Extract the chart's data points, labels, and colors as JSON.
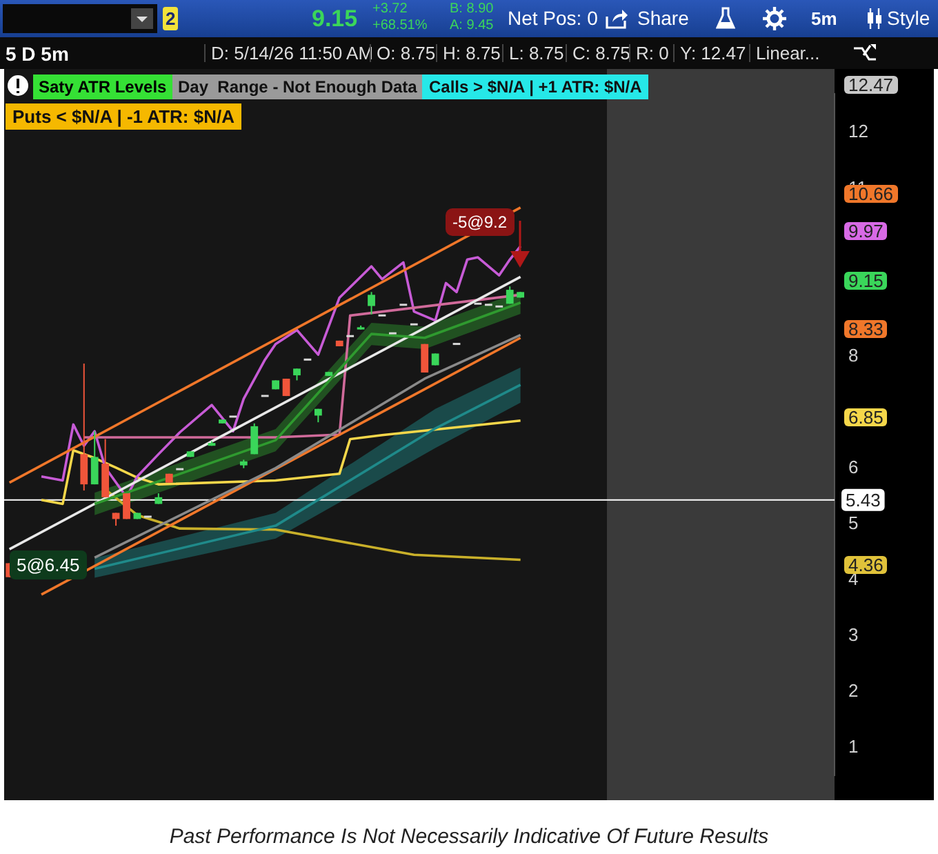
{
  "chart_data": {
    "type": "candlestick",
    "categories": [
      null,
      null,
      null,
      null,
      null,
      null,
      null,
      null,
      null,
      null,
      null,
      null,
      null,
      null,
      null,
      null,
      null,
      null,
      null,
      null,
      null,
      null,
      null,
      null,
      null,
      null,
      null,
      null,
      null,
      null,
      null,
      null,
      null,
      null,
      null,
      null,
      null,
      null,
      null,
      null,
      null,
      null,
      null,
      null,
      null,
      null,
      null,
      null,
      null,
      null,
      null,
      null,
      null,
      null,
      null,
      null,
      null,
      null,
      null,
      null,
      null,
      null,
      null,
      null,
      null,
      null,
      null,
      null,
      null,
      null,
      null,
      null,
      null,
      null,
      null,
      null,
      null,
      null
    ],
    "ohlc": [
      [
        4.3,
        4.3,
        4.05,
        4.05
      ],
      null,
      null,
      null,
      null,
      null,
      null,
      [
        6.25,
        7.87,
        5.6,
        5.71
      ],
      [
        5.71,
        6.66,
        5.71,
        6.2
      ],
      [
        6.08,
        6.52,
        5.48,
        5.48
      ],
      [
        5.2,
        5.2,
        4.97,
        5.09
      ],
      [
        5.55,
        5.55,
        5.09,
        5.09
      ],
      [
        5.09,
        5.2,
        5.09,
        5.2
      ],
      [
        5.15,
        5.15,
        5.15,
        5.15
      ],
      [
        5.36,
        5.55,
        5.36,
        5.48
      ],
      [
        5.9,
        5.9,
        5.74,
        5.74
      ],
      [
        6,
        6,
        6,
        6
      ],
      [
        6.2,
        6.3,
        6.2,
        6.3
      ],
      null,
      [
        6.4,
        6.48,
        6.4,
        6.45
      ],
      [
        6.8,
        6.87,
        6.8,
        6.87
      ],
      [
        6.94,
        6.94,
        6.94,
        6.94
      ],
      [
        6.05,
        6.15,
        6,
        6.12
      ],
      [
        6.25,
        6.8,
        6.25,
        6.75
      ],
      [
        7.31,
        7.31,
        7.31,
        7.31
      ],
      [
        7.41,
        7.57,
        7.41,
        7.57
      ],
      [
        7.6,
        7.6,
        7.29,
        7.29
      ],
      [
        7.66,
        7.78,
        7.57,
        7.78
      ],
      [
        7.96,
        7.96,
        7.96,
        7.96
      ],
      [
        6.94,
        7.06,
        6.82,
        7.06
      ],
      [
        7.65,
        7.72,
        7.65,
        7.72
      ],
      [
        8.28,
        8.28,
        8.18,
        8.18
      ],
      [
        8.38,
        8.38,
        8.38,
        8.38
      ],
      [
        8.48,
        8.55,
        8.48,
        8.52
      ],
      [
        8.9,
        9.15,
        8.75,
        9.1
      ],
      [
        8.75,
        8.75,
        8.75,
        8.75
      ],
      [
        8.43,
        8.43,
        8.43,
        8.43
      ],
      [
        8.94,
        8.94,
        8.94,
        8.94
      ],
      [
        8.59,
        8.59,
        8.59,
        8.59
      ],
      [
        8.22,
        8.22,
        7.71,
        7.71
      ],
      [
        7.84,
        8.05,
        7.84,
        8.05
      ],
      null,
      [
        8.24,
        8.24,
        8.24,
        8.24
      ],
      null,
      [
        8.96,
        8.96,
        8.96,
        8.96
      ],
      [
        8.94,
        8.94,
        8.94,
        8.94
      ],
      [
        8.91,
        8.91,
        8.91,
        8.91
      ],
      [
        8.94,
        9.25,
        8.94,
        9.19
      ],
      [
        9.05,
        9.15,
        9.05,
        9.15
      ],
      null,
      null,
      null,
      null,
      null,
      null,
      null,
      null,
      null,
      null,
      null,
      null,
      null,
      null,
      null,
      null,
      null,
      null,
      null,
      null,
      null,
      null,
      null,
      null,
      null,
      null,
      null,
      null,
      null
    ],
    "series": [
      {
        "type": "line",
        "color": "#1f8a8a",
        "values": [
          null,
          null,
          null,
          null,
          null,
          null,
          null,
          null,
          4.2,
          null,
          null,
          null,
          null,
          null,
          null,
          null,
          null,
          null,
          null,
          null,
          null,
          null,
          null,
          null,
          null,
          4.97,
          null,
          null,
          null,
          null,
          null,
          null,
          null,
          null,
          null,
          null,
          null,
          null,
          null,
          null,
          6.71,
          null,
          null,
          null,
          null,
          null,
          null,
          null,
          7.49,
          null,
          null,
          null,
          null,
          null,
          null,
          null,
          null,
          null,
          null,
          null,
          null,
          null,
          null,
          null,
          null,
          null,
          null,
          null,
          null,
          null,
          null,
          null,
          null,
          null,
          null,
          null,
          null,
          null
        ],
        "lower": [
          null,
          null,
          null,
          null,
          null,
          null,
          null,
          null,
          4.04,
          null,
          null,
          null,
          null,
          null,
          null,
          null,
          null,
          null,
          null,
          null,
          null,
          null,
          null,
          null,
          null,
          4.74,
          null,
          null,
          null,
          null,
          null,
          null,
          null,
          null,
          null,
          null,
          null,
          null,
          null,
          null,
          6.36,
          null,
          null,
          null,
          null,
          null,
          null,
          null,
          7.17,
          null,
          null,
          null,
          null,
          null,
          null,
          null,
          null,
          null,
          null,
          null,
          null,
          null,
          null,
          null,
          null,
          null,
          null,
          null,
          null,
          null,
          null,
          null,
          null,
          null,
          null,
          null,
          null,
          null
        ],
        "upper": [
          null,
          null,
          null,
          null,
          null,
          null,
          null,
          null,
          4.39,
          null,
          null,
          null,
          null,
          null,
          null,
          null,
          null,
          null,
          null,
          null,
          null,
          null,
          null,
          null,
          null,
          5.2,
          null,
          null,
          null,
          null,
          null,
          null,
          null,
          null,
          null,
          null,
          null,
          null,
          null,
          null,
          7.06,
          null,
          null,
          null,
          null,
          null,
          null,
          null,
          7.8,
          null,
          null,
          null,
          null,
          null,
          null,
          null,
          null,
          null,
          null,
          null,
          null,
          null,
          null,
          null,
          null,
          null,
          null,
          null,
          null,
          null,
          null,
          null,
          null,
          null,
          null,
          null,
          null,
          null
        ]
      },
      {
        "type": "line",
        "color": "#2f9a2f",
        "values": [
          null,
          null,
          null,
          null,
          null,
          null,
          null,
          null,
          5.36,
          null,
          null,
          null,
          null,
          null,
          null,
          null,
          null,
          null,
          null,
          null,
          null,
          null,
          null,
          null,
          null,
          6.5,
          null,
          null,
          null,
          null,
          null,
          null,
          null,
          null,
          8.4,
          null,
          null,
          null,
          null,
          8.33,
          null,
          null,
          null,
          null,
          null,
          null,
          null,
          null,
          8.96,
          null,
          null,
          null,
          null,
          null,
          null,
          null,
          null,
          null,
          null,
          null,
          null,
          null,
          null,
          null,
          null,
          null,
          null,
          null,
          null,
          null,
          null,
          null,
          null,
          null,
          null,
          null,
          null,
          null
        ],
        "lower": [
          null,
          null,
          null,
          null,
          null,
          null,
          null,
          null,
          5.16,
          null,
          null,
          null,
          null,
          null,
          null,
          null,
          null,
          null,
          null,
          null,
          null,
          null,
          null,
          null,
          null,
          6.3,
          null,
          null,
          null,
          null,
          null,
          null,
          null,
          null,
          8.2,
          null,
          null,
          null,
          null,
          8.13,
          null,
          null,
          null,
          null,
          null,
          null,
          null,
          null,
          8.76,
          null,
          null,
          null,
          null,
          null,
          null,
          null,
          null,
          null,
          null,
          null,
          null,
          null,
          null,
          null,
          null,
          null,
          null,
          null,
          null,
          null,
          null,
          null,
          null,
          null,
          null,
          null,
          null,
          null
        ],
        "upper": [
          null,
          null,
          null,
          null,
          null,
          null,
          null,
          null,
          5.56,
          null,
          null,
          null,
          null,
          null,
          null,
          null,
          null,
          null,
          null,
          null,
          null,
          null,
          null,
          null,
          null,
          6.7,
          null,
          null,
          null,
          null,
          null,
          null,
          null,
          null,
          8.6,
          null,
          null,
          null,
          null,
          8.53,
          null,
          null,
          null,
          null,
          null,
          null,
          null,
          null,
          9.16,
          null,
          null,
          null,
          null,
          null,
          null,
          null,
          null,
          null,
          null,
          null,
          null,
          null,
          null,
          null,
          null,
          null,
          null,
          null,
          null,
          null,
          null,
          null,
          null,
          null,
          null,
          null,
          null,
          null
        ]
      },
      {
        "type": "line",
        "color": "#8a8a8a",
        "values": [
          null,
          null,
          null,
          null,
          null,
          null,
          null,
          null,
          4.4,
          null,
          null,
          null,
          null,
          null,
          null,
          null,
          null,
          null,
          null,
          null,
          null,
          null,
          null,
          null,
          null,
          6,
          null,
          null,
          null,
          null,
          null,
          null,
          null,
          null,
          null,
          null,
          null,
          null,
          null,
          7.6,
          null,
          null,
          null,
          null,
          null,
          null,
          null,
          null,
          8.38,
          null,
          null,
          null,
          null,
          null,
          null,
          null,
          null,
          null,
          null,
          null,
          null,
          null,
          null,
          null,
          null,
          null,
          null,
          null,
          null,
          null,
          null,
          null,
          null,
          null,
          null,
          null,
          null,
          null
        ]
      },
      {
        "type": "line",
        "color": "#f0772a",
        "values": [
          5.74,
          null,
          null,
          null,
          null,
          null,
          null,
          null,
          null,
          null,
          null,
          null,
          null,
          null,
          null,
          null,
          null,
          null,
          null,
          null,
          null,
          null,
          null,
          null,
          null,
          null,
          null,
          null,
          null,
          null,
          null,
          null,
          null,
          null,
          null,
          null,
          null,
          null,
          null,
          null,
          null,
          null,
          null,
          null,
          null,
          null,
          null,
          null,
          10.66,
          null,
          null,
          null,
          null,
          null,
          null,
          null,
          null,
          null,
          null,
          null,
          null,
          null,
          null,
          null,
          null,
          null,
          null,
          null,
          null,
          null,
          null,
          null,
          null,
          null,
          null,
          null,
          null,
          null
        ]
      },
      {
        "type": "line",
        "color": "#f0772a",
        "values": [
          null,
          null,
          null,
          3.74,
          null,
          null,
          null,
          null,
          null,
          null,
          null,
          null,
          null,
          null,
          null,
          null,
          null,
          null,
          null,
          null,
          null,
          null,
          null,
          null,
          null,
          null,
          null,
          null,
          null,
          null,
          null,
          null,
          null,
          null,
          null,
          null,
          null,
          null,
          null,
          null,
          null,
          null,
          null,
          null,
          null,
          null,
          null,
          null,
          8.33,
          null,
          null,
          null,
          null,
          null,
          null,
          null,
          null,
          null,
          null,
          null,
          null,
          null,
          null,
          null,
          null,
          null,
          null,
          null,
          null,
          null,
          null,
          null,
          null,
          null,
          null,
          null,
          null,
          null
        ]
      },
      {
        "type": "line",
        "color": "#e8e8e8",
        "values": [
          4.55,
          null,
          null,
          null,
          null,
          null,
          null,
          null,
          null,
          null,
          null,
          null,
          null,
          null,
          null,
          null,
          null,
          null,
          null,
          null,
          null,
          null,
          null,
          null,
          null,
          null,
          null,
          null,
          null,
          null,
          null,
          null,
          null,
          null,
          null,
          null,
          null,
          null,
          null,
          null,
          null,
          null,
          null,
          null,
          null,
          null,
          null,
          null,
          9.42,
          null,
          null,
          null,
          null,
          null,
          null,
          null,
          null,
          null,
          null,
          null,
          null,
          null,
          null,
          null,
          null,
          null,
          null,
          null,
          null,
          null,
          null,
          null,
          null,
          null,
          null,
          null,
          null,
          null
        ]
      },
      {
        "type": "line",
        "color": "#d06a9a",
        "values": [
          null,
          null,
          null,
          null,
          null,
          null,
          null,
          6.55,
          null,
          null,
          null,
          null,
          null,
          null,
          null,
          null,
          null,
          null,
          null,
          null,
          null,
          null,
          null,
          null,
          null,
          6.55,
          null,
          null,
          null,
          null,
          null,
          6.6,
          8.73,
          null,
          null,
          null,
          null,
          null,
          null,
          null,
          null,
          null,
          null,
          null,
          null,
          null,
          null,
          null,
          9.1,
          null,
          null,
          null,
          null,
          null,
          null,
          null,
          null,
          null,
          null,
          null,
          null,
          null,
          null,
          null,
          null,
          null,
          null,
          null,
          null,
          null,
          null,
          null,
          null,
          null,
          null,
          null,
          null,
          null
        ]
      },
      {
        "type": "line",
        "color": "#c75bd6",
        "values": [
          null,
          null,
          null,
          5.85,
          null,
          5.78,
          6.78,
          6.4,
          6.66,
          6.01,
          null,
          5.48,
          5.85,
          null,
          6.25,
          null,
          6.64,
          null,
          null,
          7.13,
          null,
          6.66,
          7.24,
          null,
          7.94,
          8.22,
          null,
          8.47,
          null,
          8.03,
          null,
          9.05,
          null,
          null,
          9.61,
          9.38,
          null,
          9.68,
          8.8,
          null,
          8.64,
          9.31,
          9.15,
          9.73,
          9.77,
          null,
          9.45,
          9.73,
          9.97,
          null,
          null,
          null,
          null,
          null,
          null,
          null,
          null,
          null,
          null,
          null,
          null,
          null,
          null,
          null,
          null,
          null,
          null,
          null,
          null,
          null,
          null,
          null,
          null,
          null,
          null,
          null,
          null,
          null
        ]
      },
      {
        "type": "line",
        "color": "#c9b02a",
        "values": [
          null,
          null,
          null,
          null,
          null,
          null,
          null,
          null,
          null,
          5.62,
          null,
          null,
          5.16,
          null,
          null,
          null,
          4.92,
          null,
          null,
          null,
          null,
          null,
          null,
          null,
          null,
          4.9,
          null,
          null,
          null,
          null,
          null,
          null,
          null,
          null,
          null,
          null,
          null,
          null,
          4.45,
          null,
          null,
          null,
          null,
          null,
          null,
          null,
          null,
          null,
          4.36,
          null,
          null,
          null,
          null,
          null,
          null,
          null,
          null,
          null,
          null,
          null,
          null,
          null,
          null,
          null,
          null,
          null,
          null,
          null,
          null,
          null,
          null,
          null,
          null,
          null,
          null,
          null,
          null,
          null
        ]
      },
      {
        "type": "line",
        "color": "#f5d74a",
        "values": [
          null,
          null,
          null,
          5.43,
          null,
          5.36,
          6.32,
          null,
          6.18,
          null,
          6.01,
          null,
          5.83,
          null,
          5.71,
          null,
          null,
          null,
          null,
          null,
          null,
          null,
          null,
          null,
          null,
          5.78,
          null,
          null,
          null,
          null,
          null,
          5.9,
          6.52,
          null,
          null,
          6.59,
          null,
          null,
          null,
          null,
          null,
          null,
          null,
          null,
          null,
          null,
          null,
          null,
          6.85,
          null,
          null,
          null,
          null,
          null,
          null,
          null,
          null,
          null,
          null,
          null,
          null,
          null,
          null,
          null,
          null,
          null,
          null,
          null,
          null,
          null,
          null,
          null,
          null,
          null,
          null,
          null,
          null,
          null
        ]
      }
    ],
    "ylim": [
      0.5,
      12.7
    ],
    "yticks": [
      1,
      2,
      3,
      4,
      5,
      6,
      8,
      11,
      12
    ],
    "grid": false,
    "tick_labels": "y",
    "marker": "none",
    "ref_lines": [
      {
        "axis": "y",
        "value": 5.43,
        "label": "5.43",
        "color": "#ffffff"
      }
    ],
    "annotations": [
      "2",
      "9.15",
      "+3.72",
      "+68.51%",
      "B: 8.90",
      "A: 9.45",
      "Net Pos: 0",
      "Share",
      "5m",
      "Style",
      "5 D 5m",
      "D: 5/14/26 11:50 AM",
      "O: 8.75",
      "H: 8.75",
      "L: 8.75",
      "C: 8.75",
      "R: 0",
      "Y: 12.47",
      "Linear...",
      "Saty ATR Levels",
      "Day  Range - Not Enough Data",
      "Calls > $N/A | +1 ATR: $N/A",
      "Puts < $N/A | -1 ATR: $N/A",
      "-5@9.2",
      "5@6.45",
      "Past Performance Is Not Necessarily Indicative Of Future Results",
      "12.47",
      "10.66",
      "9.97",
      "9.15",
      "8.33",
      "6.85",
      "4.36"
    ]
  }
}
